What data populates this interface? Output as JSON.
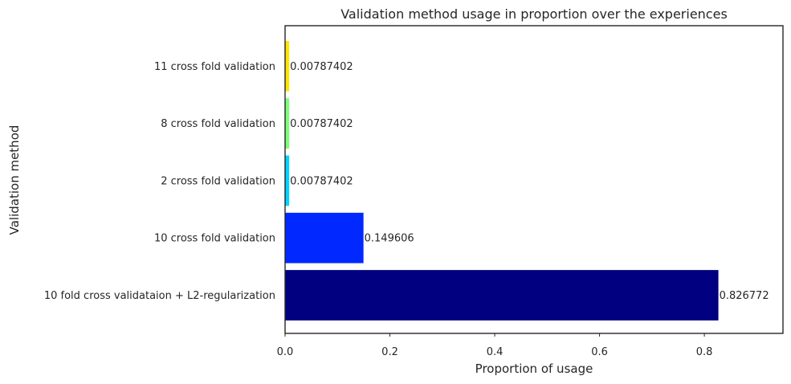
{
  "chart_data": {
    "type": "bar",
    "orientation": "horizontal",
    "title": "Validation method usage in proportion over the experiences",
    "xlabel": "Proportion of usage",
    "ylabel": "Validation method",
    "xlim": [
      0,
      0.95
    ],
    "xticks": [
      0,
      0.2,
      0.4,
      0.6,
      0.8
    ],
    "xtick_labels": [
      "0.0",
      "0.2",
      "0.4",
      "0.6",
      "0.8"
    ],
    "grid": false,
    "categories": [
      "10 fold cross validataion + L2-regularization",
      "10 cross fold validation",
      "2 cross fold validation",
      "8 cross fold validation",
      "11 cross fold validation"
    ],
    "values": [
      0.826772,
      0.149606,
      0.00787402,
      0.00787402,
      0.00787402
    ],
    "value_labels": [
      "0.826772",
      "0.149606",
      "0.00787402",
      "0.00787402",
      "0.00787402"
    ],
    "colors": [
      "#000080",
      "#0028ff",
      "#00d4ff",
      "#7dff7a",
      "#ffe600"
    ]
  }
}
